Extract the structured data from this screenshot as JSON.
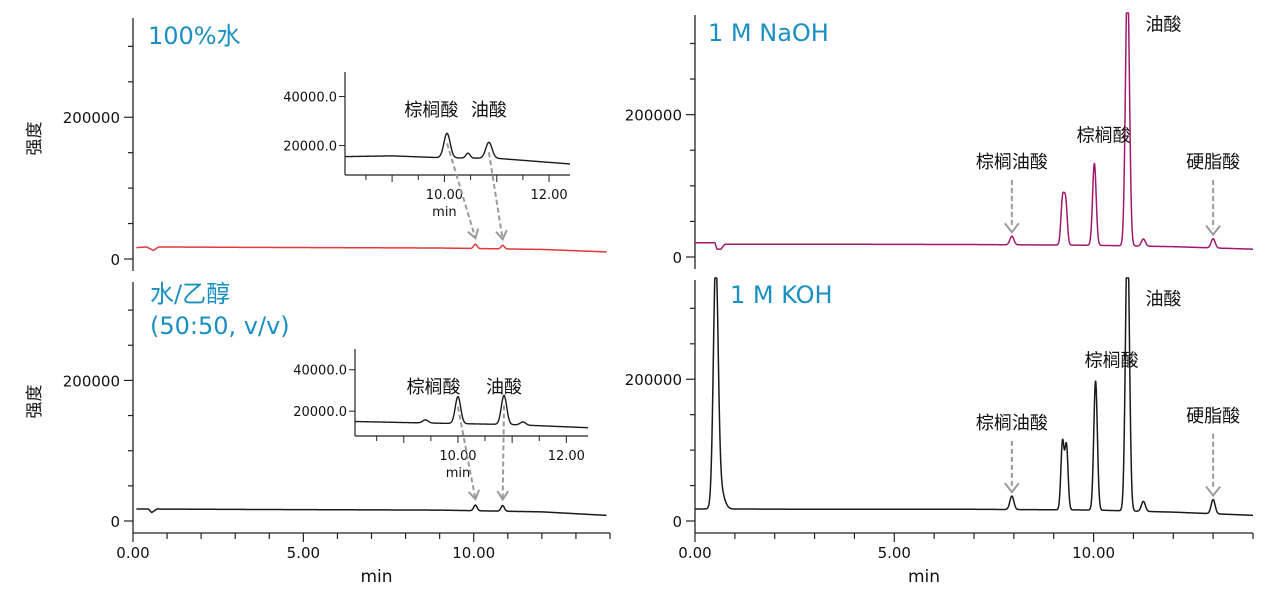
{
  "colors": {
    "title": "#1a8fc2",
    "red_trace": "#e03a3a",
    "purple_trace": "#a01870",
    "black_trace": "#1a1a1a",
    "arrow": "#9a9a9a"
  },
  "chart_data": [
    {
      "id": "water",
      "type": "line",
      "title": "100%水",
      "ylabel": "强度",
      "xlabel": "",
      "xlim": [
        0,
        14
      ],
      "ylim": [
        0,
        340000
      ],
      "x_ticks": [],
      "y_ticks": [
        {
          "v": 0,
          "label": "0"
        },
        {
          "v": 200000,
          "label": "200000"
        }
      ],
      "series": [
        {
          "color": "red_trace",
          "baseline": [
            [
              0.1,
              16000
            ],
            [
              0.4,
              17000
            ],
            [
              0.6,
              12000
            ],
            [
              0.75,
              17000
            ],
            [
              3,
              16500
            ],
            [
              6,
              16000
            ],
            [
              9,
              15500
            ],
            [
              12,
              13500
            ],
            [
              13.9,
              10000
            ]
          ],
          "peaks": [
            {
              "x": 10.05,
              "h": 6000,
              "w": 0.05
            },
            {
              "x": 10.85,
              "h": 5000,
              "w": 0.05
            }
          ]
        }
      ],
      "annotations": [],
      "inset": {
        "xlim": [
          8.1,
          12.4
        ],
        "ylim": [
          8000,
          50000
        ],
        "x_ticks": [
          {
            "v": 10,
            "label": "10.00"
          },
          {
            "v": 12,
            "label": "12.00"
          }
        ],
        "y_ticks": [
          {
            "v": 20000,
            "label": "20000.0"
          },
          {
            "v": 40000,
            "label": "40000.0"
          }
        ],
        "xlabel": "min",
        "baseline": [
          [
            8.1,
            15500
          ],
          [
            9,
            15800
          ],
          [
            10,
            15000
          ],
          [
            11,
            14800
          ],
          [
            12.4,
            12500
          ]
        ],
        "peaks": [
          {
            "x": 10.05,
            "h": 10000,
            "w": 0.06
          },
          {
            "x": 10.45,
            "h": 2000,
            "w": 0.04
          },
          {
            "x": 10.85,
            "h": 6500,
            "w": 0.06
          }
        ],
        "labels": [
          {
            "x": 9.75,
            "text": "棕榈酸"
          },
          {
            "x": 10.85,
            "text": "油酸"
          }
        ],
        "arrows": [
          {
            "from": 10.05,
            "to": 10.05
          },
          {
            "from": 10.85,
            "to": 10.85
          }
        ]
      }
    },
    {
      "id": "naoh",
      "type": "line",
      "title": "1 M NaOH",
      "ylabel": "",
      "xlabel": "",
      "xlim": [
        0,
        14
      ],
      "ylim": [
        0,
        340000
      ],
      "x_ticks": [],
      "y_ticks": [
        {
          "v": 0,
          "label": "0"
        },
        {
          "v": 200000,
          "label": "200000"
        }
      ],
      "series": [
        {
          "color": "purple_trace",
          "baseline": [
            [
              0,
              20000
            ],
            [
              0.5,
              20000
            ],
            [
              0.55,
              11000
            ],
            [
              0.65,
              11000
            ],
            [
              0.75,
              18000
            ],
            [
              3,
              18000
            ],
            [
              7,
              17500
            ],
            [
              10,
              16500
            ],
            [
              12,
              14500
            ],
            [
              14,
              11000
            ]
          ],
          "peaks": [
            {
              "x": 7.95,
              "h": 12000,
              "w": 0.05
            },
            {
              "x": 9.22,
              "h": 62000,
              "w": 0.04
            },
            {
              "x": 9.3,
              "h": 60000,
              "w": 0.04
            },
            {
              "x": 10.02,
              "h": 115000,
              "w": 0.045
            },
            {
              "x": 10.85,
              "h": 380000,
              "w": 0.05
            },
            {
              "x": 11.25,
              "h": 10000,
              "w": 0.05
            },
            {
              "x": 13.0,
              "h": 13000,
              "w": 0.05
            }
          ]
        }
      ],
      "annotations": [
        {
          "x": 10.85,
          "text": "油酸",
          "ty": 318000,
          "arrow": false
        },
        {
          "x": 9.35,
          "text": "棕榈酸",
          "ty": 162000,
          "arrow": false
        },
        {
          "x": 7.95,
          "text": "棕榈油酸",
          "ty": 125000,
          "arrow": true
        },
        {
          "x": 13.0,
          "text": "硬脂酸",
          "ty": 125000,
          "arrow": true
        }
      ],
      "inset": null
    },
    {
      "id": "ethanol",
      "type": "line",
      "title": [
        "水/乙醇",
        "(50:50, v/v)"
      ],
      "ylabel": "强度",
      "xlabel": "min",
      "xlim": [
        0,
        14
      ],
      "ylim": [
        0,
        340000
      ],
      "x_ticks": [
        {
          "v": 0,
          "label": "0.00"
        },
        {
          "v": 5,
          "label": "5.00"
        },
        {
          "v": 10,
          "label": "10.00"
        }
      ],
      "y_ticks": [
        {
          "v": 0,
          "label": "0"
        },
        {
          "v": 200000,
          "label": "200000"
        }
      ],
      "series": [
        {
          "color": "black_trace",
          "baseline": [
            [
              0.1,
              17000
            ],
            [
              0.45,
              17000
            ],
            [
              0.55,
              12000
            ],
            [
              0.7,
              17000
            ],
            [
              3,
              16500
            ],
            [
              6,
              16000
            ],
            [
              9,
              15500
            ],
            [
              12,
              13000
            ],
            [
              13.9,
              8000
            ]
          ],
          "peaks": [
            {
              "x": 10.05,
              "h": 8000,
              "w": 0.05
            },
            {
              "x": 10.85,
              "h": 8000,
              "w": 0.05
            }
          ]
        }
      ],
      "annotations": [],
      "inset": {
        "xlim": [
          8.1,
          12.4
        ],
        "ylim": [
          8000,
          50000
        ],
        "x_ticks": [
          {
            "v": 10,
            "label": "10.00"
          },
          {
            "v": 12,
            "label": "12.00"
          }
        ],
        "y_ticks": [
          {
            "v": 20000,
            "label": "20000.0"
          },
          {
            "v": 40000,
            "label": "40000.0"
          }
        ],
        "xlabel": "min",
        "baseline": [
          [
            8.1,
            15000
          ],
          [
            9,
            14500
          ],
          [
            10,
            14000
          ],
          [
            11,
            13500
          ],
          [
            12.4,
            12000
          ]
        ],
        "peaks": [
          {
            "x": 10.0,
            "h": 13000,
            "w": 0.05
          },
          {
            "x": 10.85,
            "h": 14000,
            "w": 0.05
          },
          {
            "x": 9.4,
            "h": 1500,
            "w": 0.05
          },
          {
            "x": 11.2,
            "h": 1500,
            "w": 0.05
          }
        ],
        "labels": [
          {
            "x": 9.55,
            "text": "棕榈酸"
          },
          {
            "x": 10.85,
            "text": "油酸"
          }
        ],
        "arrows": [
          {
            "from": 10.0,
            "to": 10.05
          },
          {
            "from": 10.85,
            "to": 10.85
          }
        ]
      }
    },
    {
      "id": "koh",
      "type": "line",
      "title": "1 M KOH",
      "ylabel": "",
      "xlabel": "min",
      "xlim": [
        0,
        14
      ],
      "ylim": [
        0,
        340000
      ],
      "x_ticks": [
        {
          "v": 0,
          "label": "0.00"
        },
        {
          "v": 5,
          "label": "5.00"
        },
        {
          "v": 10,
          "label": "10.00"
        }
      ],
      "y_ticks": [
        {
          "v": 0,
          "label": "0"
        },
        {
          "v": 200000,
          "label": "200000"
        }
      ],
      "series": [
        {
          "color": "black_trace",
          "baseline": [
            [
              0,
              17000
            ],
            [
              0.4,
              17000
            ],
            [
              0.55,
              18000
            ],
            [
              0.9,
              17000
            ],
            [
              3,
              16500
            ],
            [
              7,
              16500
            ],
            [
              10,
              15500
            ],
            [
              12,
              12500
            ],
            [
              14,
              8000
            ]
          ],
          "peaks": [
            {
              "x": 0.52,
              "h": 335000,
              "w": 0.06
            },
            {
              "x": 0.62,
              "h": 30000,
              "w": 0.1
            },
            {
              "x": 7.95,
              "h": 19000,
              "w": 0.05
            },
            {
              "x": 9.22,
              "h": 95000,
              "w": 0.04
            },
            {
              "x": 9.32,
              "h": 90000,
              "w": 0.04
            },
            {
              "x": 10.05,
              "h": 182000,
              "w": 0.045
            },
            {
              "x": 10.85,
              "h": 400000,
              "w": 0.05
            },
            {
              "x": 11.25,
              "h": 14000,
              "w": 0.05
            },
            {
              "x": 13.0,
              "h": 20000,
              "w": 0.05
            }
          ]
        }
      ],
      "annotations": [
        {
          "x": 10.85,
          "text": "油酸",
          "ty": 305000,
          "arrow": false
        },
        {
          "x": 9.55,
          "text": "棕榈酸",
          "ty": 218000,
          "arrow": false
        },
        {
          "x": 7.95,
          "text": "棕榈油酸",
          "ty": 130000,
          "arrow": true
        },
        {
          "x": 13.0,
          "text": "硬脂酸",
          "ty": 140000,
          "arrow": true
        }
      ],
      "inset": null
    }
  ]
}
